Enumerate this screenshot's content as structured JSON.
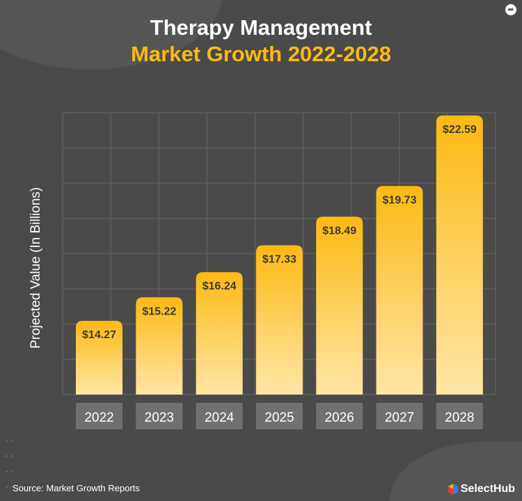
{
  "title_line1": "Therapy Management",
  "title_line2": "Market Growth 2022-2028",
  "source": "Source: Market Growth Reports",
  "logo_text": "SelectHub",
  "colors": {
    "background": "#4a4a4a",
    "bar_top": "#fdb913",
    "bar_bottom": "#ffe3a0",
    "title_accent": "#fdb913",
    "category_box": "#707070"
  },
  "chart_data": {
    "type": "bar",
    "title": "Therapy Management Market Growth 2022-2028",
    "xlabel": "",
    "ylabel": "Projected Value (In Billions)",
    "categories": [
      "2022",
      "2023",
      "2024",
      "2025",
      "2026",
      "2027",
      "2028"
    ],
    "values": [
      14.27,
      15.22,
      16.24,
      17.33,
      18.49,
      19.73,
      22.59
    ],
    "data_labels": [
      "$14.27",
      "$15.22",
      "$16.24",
      "$17.33",
      "$18.49",
      "$19.73",
      "$22.59"
    ],
    "grid": true,
    "legend": "none"
  }
}
